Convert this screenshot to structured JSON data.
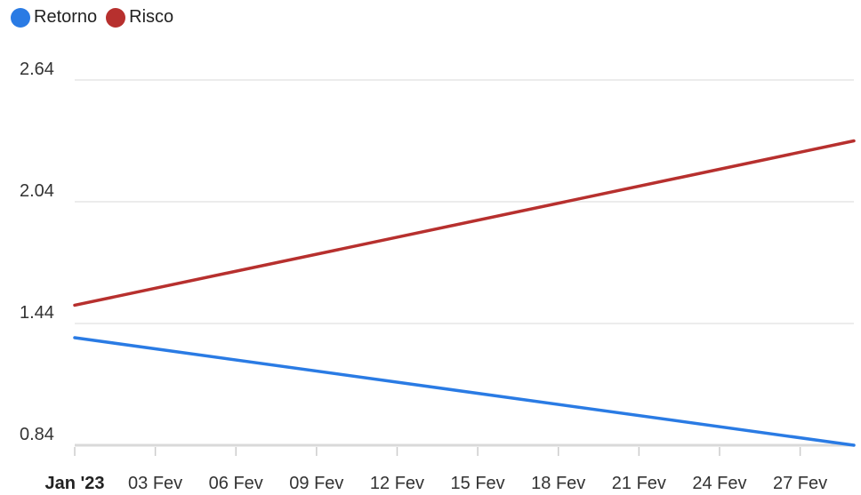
{
  "legend": {
    "items": [
      {
        "label": "Retorno",
        "color": "#2a7be4"
      },
      {
        "label": "Risco",
        "color": "#b7302e"
      }
    ]
  },
  "chart_data": {
    "type": "line",
    "title": "",
    "xlabel": "",
    "ylabel": "",
    "x": [
      "2023-01-31",
      "2023-03-01"
    ],
    "x_ticks": [
      {
        "date": "2023-01-31",
        "label": "Jan '23",
        "bold": true
      },
      {
        "date": "2023-02-03",
        "label": "03 Fev"
      },
      {
        "date": "2023-02-06",
        "label": "06 Fev"
      },
      {
        "date": "2023-02-09",
        "label": "09 Fev"
      },
      {
        "date": "2023-02-12",
        "label": "12 Fev"
      },
      {
        "date": "2023-02-15",
        "label": "15 Fev"
      },
      {
        "date": "2023-02-18",
        "label": "18 Fev"
      },
      {
        "date": "2023-02-21",
        "label": "21 Fev"
      },
      {
        "date": "2023-02-24",
        "label": "24 Fev"
      },
      {
        "date": "2023-02-27",
        "label": "27 Fev"
      }
    ],
    "y_ticks": [
      0.84,
      1.44,
      2.04,
      2.64
    ],
    "ylim": [
      0.84,
      2.64
    ],
    "grid": true,
    "legend_position": "top-left",
    "series": [
      {
        "name": "Retorno",
        "color": "#2a7be4",
        "values": [
          1.37,
          0.84
        ]
      },
      {
        "name": "Risco",
        "color": "#b7302e",
        "values": [
          1.53,
          2.34
        ]
      }
    ]
  }
}
